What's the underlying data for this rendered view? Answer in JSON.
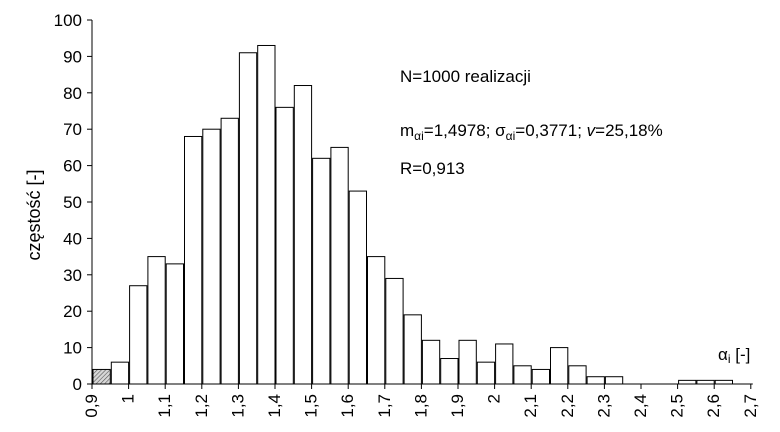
{
  "chart_data": {
    "type": "bar",
    "title": "",
    "ylabel": "częstość [-]",
    "xlabel_main": "α",
    "xlabel_sub": "i",
    "xlabel_unit": " [-]",
    "ylim": [
      0,
      100
    ],
    "yticks": [
      0,
      10,
      20,
      30,
      40,
      50,
      60,
      70,
      80,
      90,
      100
    ],
    "x_tick_labels": [
      "0,9",
      "1",
      "1,1",
      "1,2",
      "1,3",
      "1,4",
      "1,5",
      "1,6",
      "1,7",
      "1,8",
      "1,9",
      "2",
      "2,1",
      "2,2",
      "2,3",
      "2,4",
      "2,5",
      "2,6",
      "2,7"
    ],
    "bin_start": 0.9,
    "bin_width": 0.05,
    "values": [
      4,
      6,
      27,
      35,
      33,
      68,
      70,
      73,
      91,
      93,
      76,
      82,
      62,
      65,
      53,
      35,
      29,
      19,
      12,
      7,
      12,
      6,
      11,
      5,
      4,
      10,
      5,
      2,
      2,
      0,
      0,
      0,
      1,
      1,
      1,
      0
    ],
    "highlighted_bin_index": 0,
    "grid": false,
    "annotations": {
      "line1": "N=1000  realizacji",
      "line2": {
        "m": "m",
        "m_sub": "αi",
        "m_val": "=1,4978;  ",
        "s": "σ",
        "s_sub": "αi",
        "s_val": "=0,3771;  ",
        "v": "v",
        "v_val": "=25,18%"
      },
      "line3": "R=0,913"
    }
  }
}
